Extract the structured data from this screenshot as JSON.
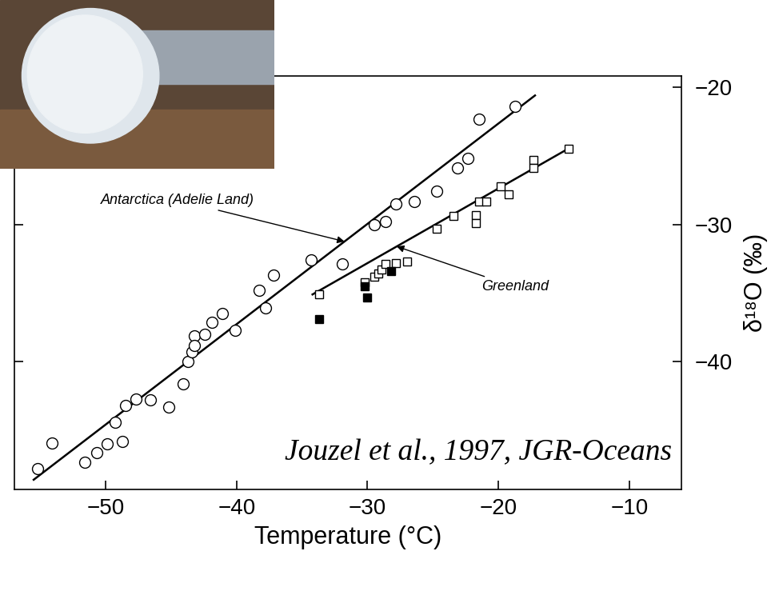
{
  "chart_data": {
    "type": "scatter",
    "x_label": "Temperature (°C)",
    "y_label": "δ¹⁸O (‰)",
    "annotations": [
      "Jouzel et al., 1997, JGR-Oceans"
    ],
    "xlim": [
      -57,
      -6
    ],
    "xticks": [
      {
        "value": -50,
        "label": "−50"
      },
      {
        "value": -40,
        "label": "−40"
      },
      {
        "value": -30,
        "label": "−30"
      },
      {
        "value": -20,
        "label": "−20"
      },
      {
        "value": -10,
        "label": "−10"
      }
    ],
    "ylim": [
      -49.3,
      -19.2
    ],
    "yticks": [
      {
        "value": -20,
        "label": "−20"
      },
      {
        "value": -30,
        "label": "−30"
      },
      {
        "value": -40,
        "label": "−40"
      }
    ],
    "tick_labels": true,
    "grid": false,
    "series": [
      {
        "name": "Antarctica (Adelie Land)",
        "color": "#000000",
        "marker": "open_circle",
        "x": [
          -55.2,
          -54.1,
          -51.6,
          -50.7,
          -49.9,
          -48.7,
          -49.3,
          -48.5,
          -47.7,
          -46.6,
          -45.2,
          -44.1,
          -43.7,
          -43.4,
          -43.2,
          -43.2,
          -42.4,
          -41.9,
          -41.1,
          -40.1,
          -37.8,
          -38.3,
          -37.2,
          -34.3,
          -31.9,
          -29.5,
          -28.6,
          -27.8,
          -26.4,
          -24.7,
          -23.1,
          -22.3,
          -21.5,
          -18.7
        ],
        "values": [
          -47.8,
          -45.9,
          -47.3,
          -46.6,
          -46.0,
          -45.8,
          -44.4,
          -43.2,
          -42.7,
          -42.8,
          -43.3,
          -41.6,
          -40.0,
          -39.3,
          -38.1,
          -38.8,
          -38.0,
          -37.1,
          -36.5,
          -37.7,
          -36.1,
          -34.8,
          -33.7,
          -32.6,
          -32.9,
          -30.0,
          -29.8,
          -28.5,
          -28.3,
          -27.6,
          -25.9,
          -25.2,
          -22.3,
          -21.4
        ],
        "fit": {
          "x": [
            -55.5,
            -17.2
          ],
          "values": [
            -48.6,
            -20.6
          ]
        }
      },
      {
        "name": "Greenland",
        "color": "#000000",
        "marker": "open_square",
        "x": [
          -33.7,
          -30.2,
          -29.5,
          -29.2,
          -28.9,
          -28.6,
          -27.8,
          -27.0,
          -24.7,
          -23.4,
          -21.7,
          -21.7,
          -21.5,
          -20.9,
          -19.8,
          -19.2,
          -17.3,
          -17.3,
          -14.6
        ],
        "values": [
          -35.1,
          -34.2,
          -33.8,
          -33.6,
          -33.3,
          -32.9,
          -32.8,
          -32.7,
          -30.3,
          -29.4,
          -29.3,
          -29.9,
          -28.3,
          -28.3,
          -27.2,
          -27.8,
          -25.3,
          -25.9,
          -24.5
        ],
        "fit": {
          "x": [
            -34.2,
            -14.7
          ],
          "values": [
            -35.1,
            -24.5
          ]
        }
      },
      {
        "color": "#000000",
        "marker": "filled_square",
        "x": [
          -30.2,
          -30.0,
          -28.2,
          -33.7
        ],
        "values": [
          -34.5,
          -35.3,
          -33.4,
          -36.9
        ]
      }
    ]
  }
}
